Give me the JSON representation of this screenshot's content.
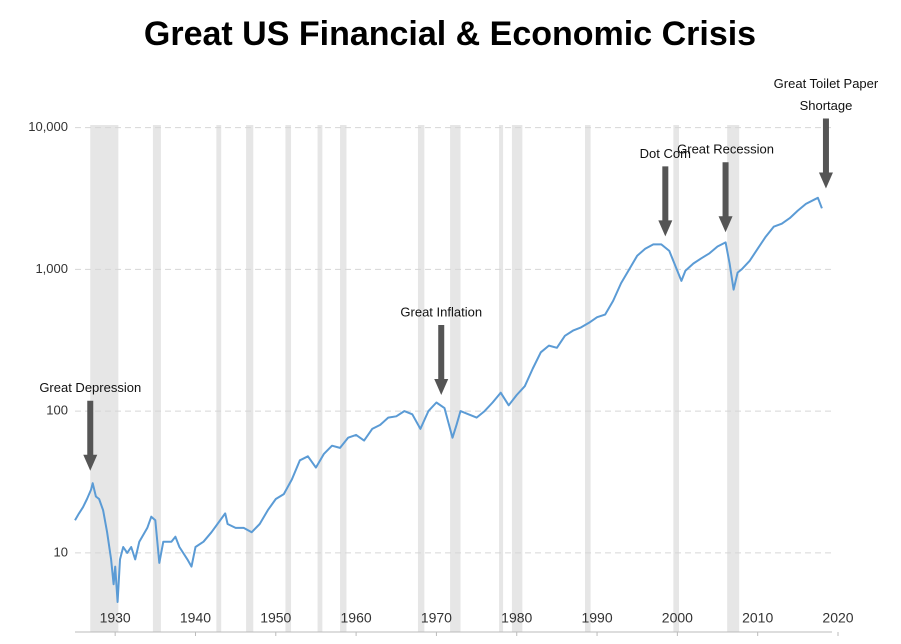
{
  "chart_data": {
    "type": "line",
    "title": "Great US Financial & Economic Crisis",
    "log_y": true,
    "grid": true,
    "color": "#5b9bd5",
    "recession_color": "#e6e6e6",
    "xlim": [
      1925,
      2020
    ],
    "xticks": [
      1930,
      1940,
      1950,
      1960,
      1970,
      1980,
      1990,
      2000,
      2010,
      2020
    ],
    "ylim": [
      3,
      20000
    ],
    "yticks": [
      10,
      100,
      {
        "value": 1000,
        "label": "1,000"
      },
      {
        "value": 10000,
        "label": "10,000"
      }
    ],
    "recessions": [
      [
        1926.9,
        1930.4
      ],
      [
        1934.7,
        1935.7
      ],
      [
        1942.6,
        1943.2
      ],
      [
        1946.3,
        1947.2
      ],
      [
        1951.2,
        1951.9
      ],
      [
        1955.2,
        1955.8
      ],
      [
        1958.0,
        1958.8
      ],
      [
        1967.7,
        1968.5
      ],
      [
        1971.7,
        1973.0
      ],
      [
        1977.8,
        1978.3
      ],
      [
        1979.4,
        1980.7
      ],
      [
        1988.5,
        1989.2
      ],
      [
        1999.5,
        2000.2
      ],
      [
        2006.2,
        2007.7
      ]
    ],
    "x": [
      1925,
      1925.5,
      1926,
      1926.5,
      1927,
      1927.2,
      1927.6,
      1928,
      1928.5,
      1929,
      1929.5,
      1929.8,
      1930,
      1930.3,
      1930.6,
      1931,
      1931.5,
      1932,
      1932.5,
      1933,
      1934,
      1934.5,
      1935,
      1935.5,
      1936,
      1937,
      1937.5,
      1938,
      1939,
      1939.5,
      1940,
      1941,
      1942,
      1943.7,
      1944,
      1945,
      1946,
      1947,
      1948,
      1949,
      1950,
      1951,
      1952,
      1953,
      1954,
      1955,
      1956,
      1957,
      1958,
      1959,
      1960,
      1961,
      1962,
      1963,
      1964,
      1965,
      1966,
      1967,
      1968,
      1969,
      1970,
      1971,
      1972,
      1972.5,
      1973,
      1974,
      1975,
      1976,
      1977,
      1978,
      1979,
      1980,
      1981,
      1982,
      1983,
      1984,
      1985,
      1986,
      1987,
      1988,
      1989,
      1990,
      1991,
      1992,
      1993,
      1994,
      1995,
      1996,
      1997,
      1998,
      1999,
      2000.5,
      2001,
      2002,
      2003,
      2004,
      2005,
      2006,
      2006.5,
      2007,
      2007.5,
      2008,
      2009,
      2010,
      2011,
      2012,
      2013,
      2014,
      2015,
      2016,
      2017,
      2017.5,
      2018
    ],
    "values": [
      17,
      19,
      21,
      24,
      28,
      31,
      25,
      24,
      20,
      14,
      9,
      6,
      8,
      4.5,
      9,
      11,
      10,
      11,
      9,
      12,
      15,
      18,
      17,
      8.5,
      12,
      12,
      13,
      11,
      9,
      8,
      11,
      12,
      14,
      19,
      16,
      15,
      15,
      14,
      16,
      20,
      24,
      26,
      33,
      45,
      48,
      40,
      50,
      57,
      55,
      65,
      68,
      62,
      75,
      80,
      90,
      92,
      100,
      95,
      75,
      100,
      115,
      105,
      65,
      80,
      100,
      95,
      90,
      100,
      115,
      135,
      110,
      130,
      150,
      200,
      260,
      290,
      280,
      340,
      370,
      390,
      420,
      460,
      480,
      600,
      800,
      1000,
      1250,
      1400,
      1500,
      1500,
      1350,
      830,
      980,
      1100,
      1200,
      1300,
      1450,
      1550,
      1100,
      720,
      950,
      1000,
      1150,
      1400,
      1700,
      2000,
      2100,
      2300,
      2600,
      2900,
      3100,
      3200,
      2700
    ],
    "annotations": [
      {
        "lines": [
          "Great Depression"
        ],
        "x": 1926.9,
        "y": 38
      },
      {
        "lines": [
          "Great Inflation"
        ],
        "x": 1970.6,
        "y": 130
      },
      {
        "lines": [
          "Dot Com"
        ],
        "x": 1998.5,
        "y": 1710
      },
      {
        "lines": [
          "Great Recession"
        ],
        "x": 2006.0,
        "y": 1830
      },
      {
        "lines": [
          "Great Toilet Paper",
          "Shortage"
        ],
        "x": 2018.5,
        "y": 3720
      }
    ]
  }
}
